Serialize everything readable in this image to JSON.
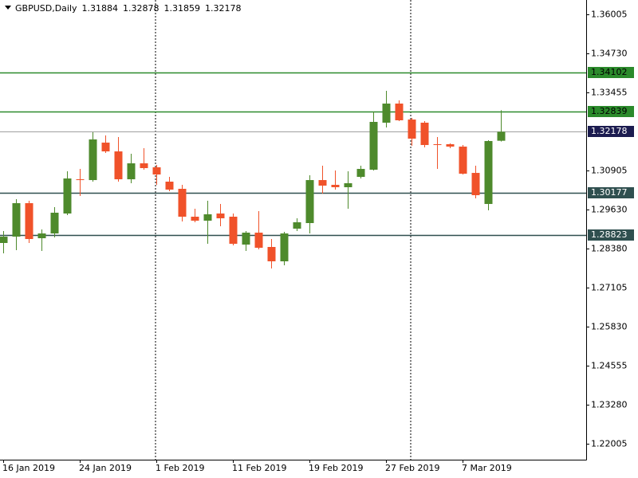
{
  "chart_data": {
    "type": "candlestick",
    "title": "GBPUSD,Daily",
    "categories": [
      "16 Jan 2019",
      null,
      null,
      null,
      null,
      null,
      "24 Jan 2019",
      null,
      null,
      null,
      null,
      null,
      "1 Feb 2019",
      null,
      null,
      null,
      null,
      null,
      "11 Feb 2019",
      null,
      null,
      null,
      null,
      null,
      "19 Feb 2019",
      null,
      null,
      null,
      null,
      null,
      "27 Feb 2019",
      null,
      null,
      null,
      null,
      null,
      "7 Mar 2019",
      null,
      null,
      null
    ],
    "open": [
      1.28551,
      1.28758,
      1.29849,
      1.28706,
      1.28862,
      1.29512,
      1.30628,
      1.30602,
      1.31823,
      1.31537,
      1.30628,
      1.31148,
      1.31018,
      1.30551,
      1.30317,
      1.29408,
      1.29278,
      1.29512,
      1.29408,
      1.28499,
      1.28888,
      1.28421,
      1.27953,
      1.29018,
      1.292,
      1.30602,
      1.30447,
      1.30369,
      1.30706,
      1.3094,
      1.32473,
      1.33096,
      1.32576,
      1.32473,
      1.31771,
      1.31771,
      1.31693,
      1.30836,
      1.29823,
      1.31884
    ],
    "high": [
      1.2894,
      1.29979,
      1.29927,
      1.28992,
      1.29719,
      1.30888,
      1.30966,
      1.32161,
      1.32057,
      1.32005,
      1.3146,
      1.31641,
      1.31096,
      1.30706,
      1.30447,
      1.29667,
      1.29927,
      1.29823,
      1.29512,
      1.2894,
      1.29589,
      1.2868,
      1.28914,
      1.29356,
      1.30758,
      1.3107,
      1.30914,
      1.30888,
      1.3107,
      1.32836,
      1.33512,
      1.332,
      1.32628,
      1.32525,
      1.32005,
      1.31797,
      1.31745,
      1.3107,
      1.31901,
      1.32878
    ],
    "low": [
      1.28213,
      1.28317,
      1.28551,
      1.28291,
      1.28732,
      1.2946,
      1.30083,
      1.30551,
      1.31486,
      1.30551,
      1.30499,
      1.3094,
      1.30447,
      1.30239,
      1.29252,
      1.29226,
      1.28525,
      1.29096,
      1.28473,
      1.28291,
      1.28343,
      1.27719,
      1.27823,
      1.2894,
      1.28862,
      1.30161,
      1.30291,
      1.29667,
      1.30654,
      1.30914,
      1.32317,
      1.32525,
      1.31719,
      1.31667,
      1.30966,
      1.31641,
      1.30784,
      1.30005,
      1.29615,
      1.31859
    ],
    "close": [
      1.28758,
      1.29849,
      1.2868,
      1.28862,
      1.29538,
      1.30654,
      1.30602,
      1.31927,
      1.31537,
      1.30628,
      1.31148,
      1.30992,
      1.30784,
      1.30291,
      1.29408,
      1.29278,
      1.29486,
      1.29356,
      1.28525,
      1.28888,
      1.28395,
      1.27953,
      1.28862,
      1.29226,
      1.30602,
      1.30421,
      1.30369,
      1.30499,
      1.30966,
      1.32499,
      1.33096,
      1.32551,
      1.31953,
      1.31745,
      1.31745,
      1.31693,
      1.3081,
      1.30109,
      1.31875,
      1.32178
    ],
    "up_color": "#4e8a2c",
    "down_color": "#f0522a",
    "ylim": [
      1.21486,
      1.36473
    ],
    "yticks": [
      1.36005,
      {
        "value": 1.3473,
        "label": "1.34730"
      },
      1.33455,
      1.30905,
      {
        "value": 1.2963,
        "label": "1.29630"
      },
      {
        "value": 1.2838,
        "label": "1.28380"
      },
      1.27105,
      {
        "value": 1.2583,
        "label": "1.25830"
      },
      1.24555,
      {
        "value": 1.2328,
        "label": "1.23280"
      },
      1.22005
    ],
    "hlines": [
      {
        "value": 1.34102,
        "color": "#2b8a2b",
        "label_color": "#000000"
      },
      {
        "value": 1.32839,
        "color": "#2b8a2b",
        "label_color": "#000000"
      },
      {
        "value": 1.30177,
        "color": "#2f4f4f",
        "label_color": "#ffffff"
      },
      {
        "value": 1.28823,
        "color": "#2f4f4f",
        "label_color": "#ffffff"
      }
    ],
    "price_line_color": "#a0a0a0",
    "price_label_color": "#1c1c50"
  }
}
